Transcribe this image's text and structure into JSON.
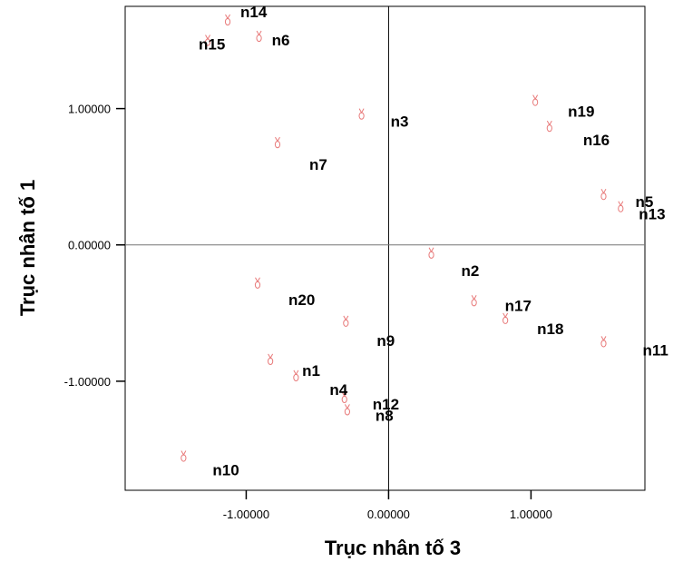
{
  "chart_data": {
    "type": "scatter",
    "xlabel": "Trục nhân tố  3",
    "ylabel": "Trục nhân tố  1",
    "xlim": [
      -1.85,
      1.8
    ],
    "ylim": [
      -1.8,
      1.75
    ],
    "xticks": [
      {
        "value": -1.0,
        "label": "-1.00000"
      },
      {
        "value": 0.0,
        "label": "0.00000"
      },
      {
        "value": 1.0,
        "label": "1.00000"
      }
    ],
    "yticks": [
      {
        "value": 1.0,
        "label": "1.00000"
      },
      {
        "value": 0.0,
        "label": "0.00000"
      },
      {
        "value": -1.0,
        "label": "-1.00000"
      }
    ],
    "reference_lines": {
      "x": 0.0,
      "y": 0.0
    },
    "marker_color": "#e87a7a",
    "grid": false,
    "points": [
      {
        "label": "n14",
        "x": -1.13,
        "y": 1.65
      },
      {
        "label": "n6",
        "x": -0.91,
        "y": 1.53
      },
      {
        "label": "n15",
        "x": -1.27,
        "y": 1.5
      },
      {
        "label": "n3",
        "x": -0.19,
        "y": 0.96
      },
      {
        "label": "n7",
        "x": -0.78,
        "y": 0.75
      },
      {
        "label": "n19",
        "x": 1.03,
        "y": 1.06
      },
      {
        "label": "n16",
        "x": 1.13,
        "y": 0.87
      },
      {
        "label": "n5",
        "x": 1.51,
        "y": 0.37
      },
      {
        "label": "n13",
        "x": 1.63,
        "y": 0.28
      },
      {
        "label": "n2",
        "x": 0.3,
        "y": -0.06
      },
      {
        "label": "n20",
        "x": -0.92,
        "y": -0.28
      },
      {
        "label": "n9",
        "x": -0.3,
        "y": -0.56
      },
      {
        "label": "n17",
        "x": 0.6,
        "y": -0.41
      },
      {
        "label": "n18",
        "x": 0.82,
        "y": -0.54
      },
      {
        "label": "n11",
        "x": 1.51,
        "y": -0.71
      },
      {
        "label": "n1",
        "x": -0.83,
        "y": -0.84
      },
      {
        "label": "n4",
        "x": -0.65,
        "y": -0.96
      },
      {
        "label": "n12",
        "x": -0.31,
        "y": -1.12
      },
      {
        "label": "n8",
        "x": -0.29,
        "y": -1.21
      },
      {
        "label": "n10",
        "x": -1.44,
        "y": -1.55
      }
    ]
  }
}
